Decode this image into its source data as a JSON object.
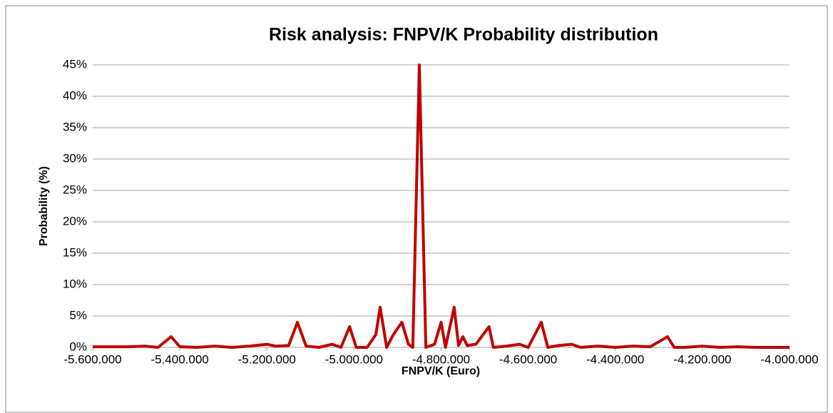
{
  "chart_data": {
    "type": "line",
    "title": "Risk analysis:  FNPV/K Probability distribution",
    "x_label": "FNPV/K (Euro)",
    "y_label": "Probability (%)",
    "x": [
      -5600000,
      -5560000,
      -5520000,
      -5480000,
      -5450000,
      -5420000,
      -5400000,
      -5360000,
      -5320000,
      -5280000,
      -5240000,
      -5200000,
      -5180000,
      -5150000,
      -5130000,
      -5110000,
      -5080000,
      -5050000,
      -5030000,
      -5010000,
      -4995000,
      -4970000,
      -4950000,
      -4940000,
      -4925000,
      -4910000,
      -4890000,
      -4875000,
      -4865000,
      -4850000,
      -4835000,
      -4815000,
      -4800000,
      -4790000,
      -4770000,
      -4760000,
      -4750000,
      -4740000,
      -4720000,
      -4690000,
      -4680000,
      -4650000,
      -4620000,
      -4600000,
      -4570000,
      -4555000,
      -4530000,
      -4500000,
      -4480000,
      -4440000,
      -4400000,
      -4360000,
      -4320000,
      -4280000,
      -4265000,
      -4240000,
      -4200000,
      -4160000,
      -4120000,
      -4080000,
      -4040000,
      -4000000
    ],
    "series": [
      {
        "name": "FNPV/K",
        "color": "#c00000",
        "values": [
          0.1,
          0.1,
          0.1,
          0.2,
          0,
          1.7,
          0.1,
          0,
          0.2,
          0,
          0.2,
          0.5,
          0.2,
          0.3,
          4,
          0.2,
          0,
          0.5,
          0,
          3.3,
          0,
          0,
          2,
          6.4,
          0,
          2,
          4,
          0.5,
          0,
          45,
          0,
          0.5,
          4,
          0,
          6.4,
          0.3,
          1.7,
          0.3,
          0.5,
          3.3,
          0,
          0.2,
          0.5,
          0,
          4,
          0,
          0.3,
          0.5,
          0,
          0.2,
          0,
          0.2,
          0.1,
          1.7,
          0,
          0,
          0.2,
          0,
          0.1,
          0,
          0,
          0
        ]
      }
    ],
    "xlim": [
      -5600000,
      -4000000
    ],
    "xticks": [
      {
        "value": -5600000,
        "label": "-5.600.000"
      },
      {
        "value": -5400000,
        "label": "-5.400.000"
      },
      {
        "value": -5200000,
        "label": "-5.200.000"
      },
      {
        "value": -5000000,
        "label": "-5.000.000"
      },
      {
        "value": -4800000,
        "label": "-4.800.000"
      },
      {
        "value": -4600000,
        "label": "-4.600.000"
      },
      {
        "value": -4400000,
        "label": "-4.400.000"
      },
      {
        "value": -4200000,
        "label": "-4.200.000"
      },
      {
        "value": -4000000,
        "label": "-4.000.000"
      }
    ],
    "ylim": [
      0,
      45
    ],
    "yticks": [
      {
        "value": 0,
        "label": "0%"
      },
      {
        "value": 5,
        "label": "5%"
      },
      {
        "value": 10,
        "label": "10%"
      },
      {
        "value": 15,
        "label": "15%"
      },
      {
        "value": 20,
        "label": "20%"
      },
      {
        "value": 25,
        "label": "25%"
      },
      {
        "value": 30,
        "label": "30%"
      },
      {
        "value": 35,
        "label": "35%"
      },
      {
        "value": 40,
        "label": "40%"
      },
      {
        "value": 45,
        "label": "45%"
      }
    ],
    "grid": true
  }
}
